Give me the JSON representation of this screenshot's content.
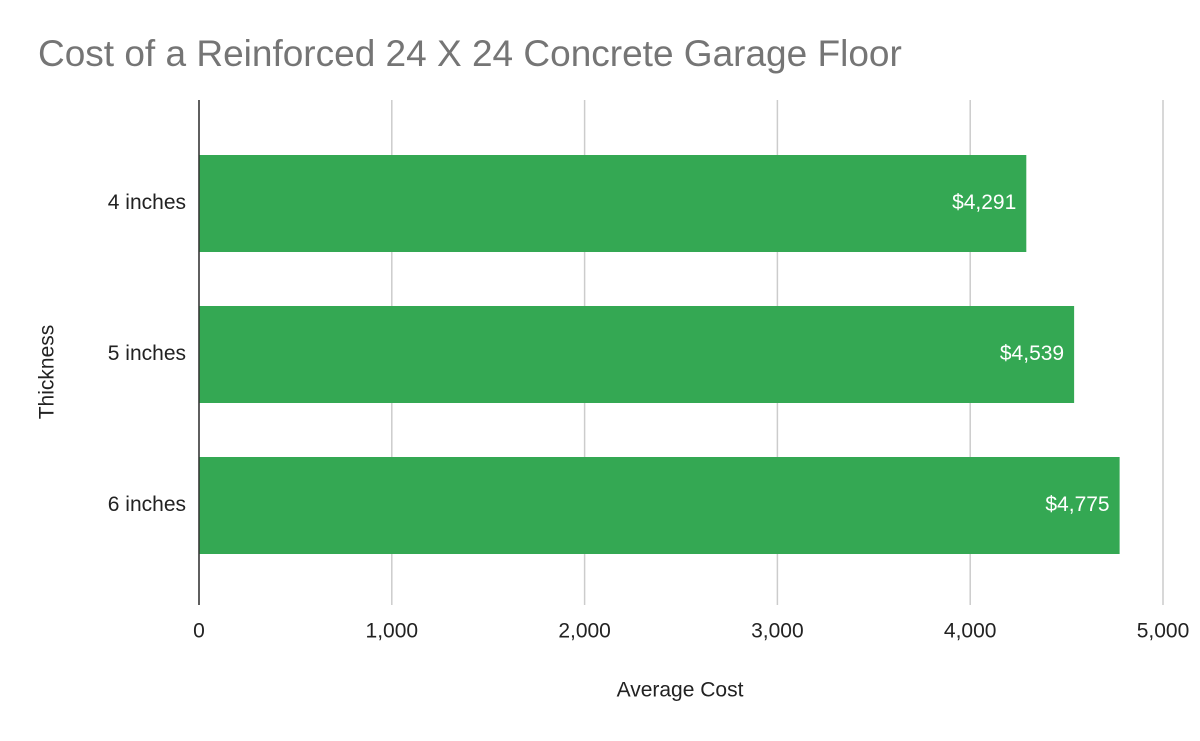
{
  "chart_data": {
    "type": "bar",
    "horizontal": true,
    "title": "Cost of a Reinforced 24 X 24 Concrete Garage Floor",
    "x_label": "Average Cost",
    "y_label": "Thickness",
    "categories": [
      "4 inches",
      "5 inches",
      "6 inches"
    ],
    "values": [
      4291,
      4539,
      4775
    ],
    "value_labels": [
      "$4,291",
      "$4,539",
      "$4,775"
    ],
    "color": "#34a853",
    "xlim": [
      0,
      5000
    ],
    "xticks": [
      0,
      {
        "value": 1000,
        "label": "1,000"
      },
      {
        "value": 2000,
        "label": "2,000"
      },
      {
        "value": 3000,
        "label": "3,000"
      },
      {
        "value": 4000,
        "label": "4,000"
      },
      {
        "value": 5000,
        "label": "5,000"
      }
    ],
    "grid": true
  }
}
